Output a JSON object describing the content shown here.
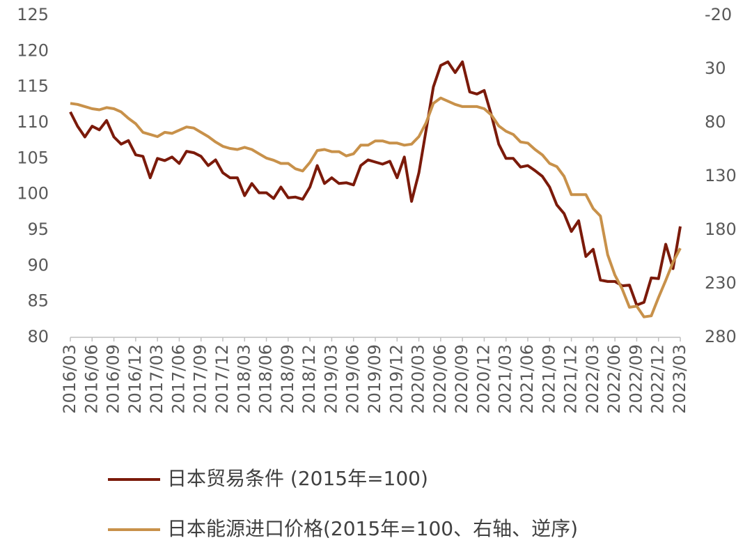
{
  "chart_data": {
    "type": "line",
    "categories": [
      "2016/03",
      null,
      null,
      "2016/06",
      null,
      null,
      "2016/09",
      null,
      null,
      "2016/12",
      null,
      null,
      "2017/03",
      null,
      null,
      "2017/06",
      null,
      null,
      "2017/09",
      null,
      null,
      "2017/12",
      null,
      null,
      "2018/03",
      null,
      null,
      "2018/06",
      null,
      null,
      "2018/09",
      null,
      null,
      "2018/12",
      null,
      null,
      "2019/03",
      null,
      null,
      "2019/06",
      null,
      null,
      "2019/09",
      null,
      null,
      "2019/12",
      null,
      null,
      "2020/03",
      null,
      null,
      "2020/06",
      null,
      null,
      "2020/09",
      null,
      null,
      "2020/12",
      null,
      null,
      "2021/03",
      null,
      null,
      "2021/06",
      null,
      null,
      "2021/09",
      null,
      null,
      "2021/12",
      null,
      null,
      "2022/03",
      null,
      null,
      "2022/06",
      null,
      null,
      "2022/09",
      null,
      null,
      "2022/12",
      null,
      null,
      "2023/03"
    ],
    "series": [
      {
        "name": "日本贸易条件 (2015年=100)",
        "color": "#7b1a0a",
        "values": [
          111.5,
          109.5,
          108,
          109.5,
          109,
          110.3,
          108,
          107,
          107.5,
          105.5,
          105.3,
          102.3,
          105,
          104.7,
          105.2,
          104.3,
          106,
          105.8,
          105.3,
          104,
          104.8,
          103,
          102.3,
          102.3,
          99.8,
          101.5,
          100.2,
          100.2,
          99.4,
          101,
          99.5,
          99.6,
          99.3,
          101,
          104,
          101.5,
          102.3,
          101.5,
          101.6,
          101.3,
          104,
          104.8,
          104.5,
          104.2,
          104.6,
          102.3,
          105.2,
          99,
          103,
          109,
          115,
          118,
          118.5,
          117,
          118.5,
          114.3,
          114,
          114.5,
          111,
          107,
          105,
          105,
          103.8,
          104,
          103.3,
          102.5,
          101,
          98.5,
          97.3,
          94.8,
          96.3,
          91.3,
          92.3,
          88,
          87.8,
          87.8,
          87.2,
          87.3,
          84.5,
          84.9,
          88.3,
          88.2,
          93,
          89.6,
          95.5
        ]
      },
      {
        "name": "日本能源进口价格(2015年=100、右轴、逆序)",
        "color": "#c8914a",
        "axis": "y2",
        "values": [
          62,
          63,
          65,
          67,
          68,
          66,
          67,
          70,
          76,
          81,
          89,
          91,
          93,
          89,
          90,
          87,
          84,
          85,
          89,
          93,
          98,
          102,
          104,
          105,
          103,
          105,
          109,
          113,
          115,
          118,
          118,
          123,
          125,
          117,
          106,
          105,
          107,
          107,
          111,
          109,
          101,
          101,
          97,
          97,
          99,
          99,
          101,
          100,
          93,
          80,
          62,
          57,
          60,
          63,
          65,
          65,
          65,
          67,
          73,
          83,
          88,
          91,
          98,
          99,
          105,
          110,
          118,
          121,
          130,
          147,
          147,
          147,
          160,
          167,
          203,
          222,
          235,
          252,
          251,
          261,
          260,
          243,
          227,
          210,
          197
        ]
      }
    ],
    "ylim": [
      80,
      125
    ],
    "yticks": [
      80,
      85,
      90,
      95,
      100,
      105,
      110,
      115,
      120,
      125
    ],
    "y2lim": [
      -20,
      280
    ],
    "y2ticks": [
      -20,
      30,
      80,
      130,
      180,
      230,
      280
    ],
    "y2reverse": true,
    "grid": false,
    "legend": "bottom"
  }
}
